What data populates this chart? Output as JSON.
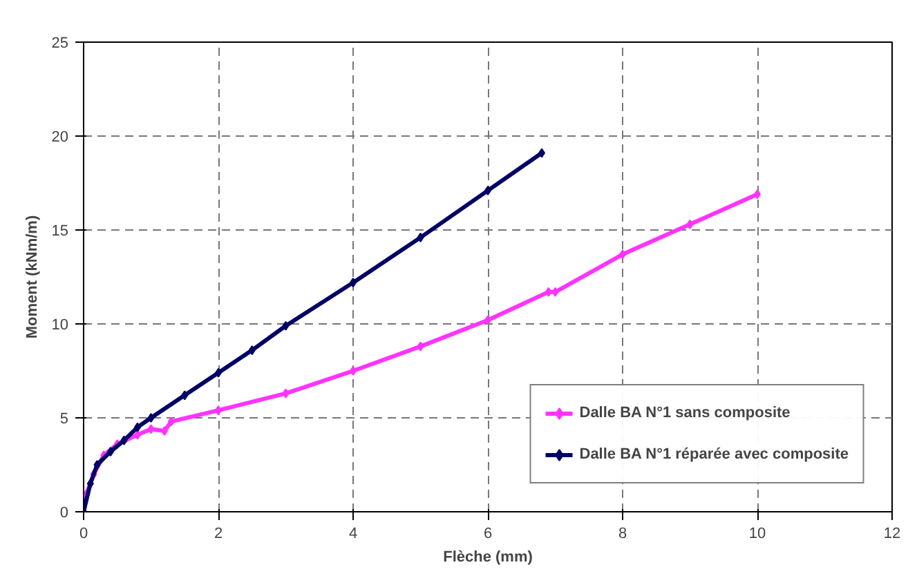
{
  "chart_data": {
    "type": "line",
    "xlabel": "Flèche (mm)",
    "ylabel": "Moment (kNm/m)",
    "xlim": [
      0,
      12
    ],
    "xticks": [
      0,
      2,
      4,
      6,
      8,
      10,
      12
    ],
    "ylim": [
      0,
      25
    ],
    "yticks": [
      0,
      5,
      10,
      15,
      20,
      25
    ],
    "grid": true,
    "legend": "bottom right",
    "marker": "diamond",
    "line_style": "solid",
    "series": [
      {
        "name": "Dalle BA N°1 sans composite",
        "color": "#ff33ff",
        "x": [
          0,
          0.05,
          0.15,
          0.3,
          0.5,
          0.8,
          1.0,
          1.2,
          1.3,
          2,
          3,
          4,
          5,
          6,
          6.9,
          7,
          8,
          9,
          10
        ],
        "values": [
          0,
          1,
          2,
          3,
          3.6,
          4.1,
          4.4,
          4.3,
          4.8,
          5.4,
          6.3,
          7.5,
          8.8,
          10.2,
          11.7,
          11.7,
          13.7,
          15.3,
          16.9
        ]
      },
      {
        "name": "Dalle BA N°1 réparée avec composite",
        "color": "#000066",
        "x": [
          0,
          0.1,
          0.2,
          0.4,
          0.6,
          0.8,
          1,
          1.5,
          2,
          2.5,
          3,
          4,
          5,
          6,
          6.8
        ],
        "values": [
          0,
          1.5,
          2.5,
          3.2,
          3.8,
          4.5,
          5,
          6.2,
          7.4,
          8.6,
          9.9,
          12.2,
          14.6,
          17.1,
          19.1
        ]
      }
    ]
  }
}
